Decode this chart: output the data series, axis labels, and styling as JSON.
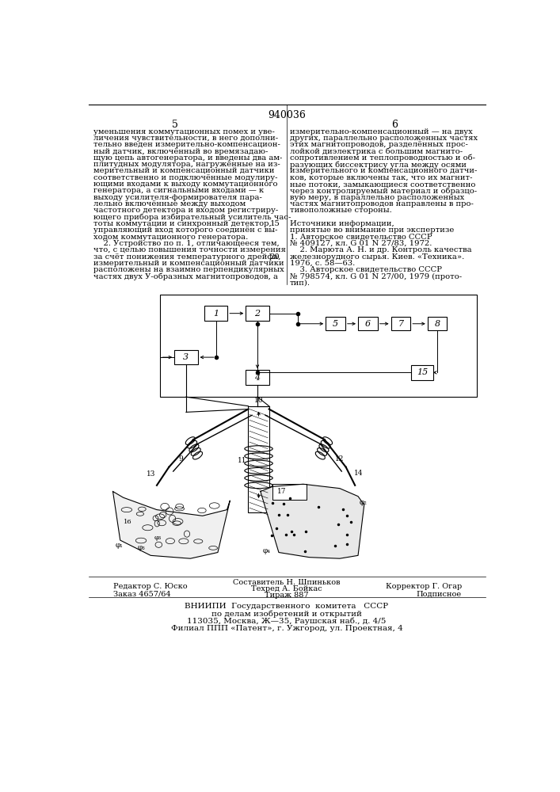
{
  "page_number": "940036",
  "col_left_number": "5",
  "col_right_number": "6",
  "col_left_text": [
    "уменьшения коммутационных помех и уве-",
    "личения чувствительности, в него дополни-",
    "тельно введен измерительно-компенсацион-",
    "ный датчик, включённый во времязадаю-",
    "щую цепь автогенератора, и введены два ам-",
    "плитудных модулятора, нагружённые на из-",
    "мерительный и компенсационный датчики",
    "соответственно и подключённые модулиру-",
    "ющими входами к выходу коммутационного",
    "генератора, а сигнальными входами — к",
    "выходу усилителя-формирователя пара-",
    "лельно включённые между выходом",
    "частотного детектора и входом регистриру-",
    "ющего прибора избирательный усилитель час-",
    "тоты коммутации и синхронный детектор,",
    "управляющий вход которого соединён с вы-",
    "ходом коммутационного генератора.",
    "    2. Устройство по п. 1, отличающееся тем,",
    "что, с целью повышения точности измерения",
    "за счёт понижения температурного дрейфа,",
    "измерительный и компенсационный датчики",
    "расположены на взаимно перпендикулярных",
    "частях двух У-образных магнитопроводов, а"
  ],
  "col_right_text": [
    "измерительно-компенсационный — на двух",
    "других, параллельно расположенных частях",
    "этих магнитопроводов, разделённых прос-",
    "лойкой диэлектрика с большим магнито-",
    "сопротивлением и теплопроводностью и об-",
    "разующих биссектрису угла между осями",
    "измерительного и компенсационного датчи-",
    "ков, которые включены так, что их магнит-",
    "ные потоки, замыкающиеся соответственно",
    "через контролируемый материал и образцо-",
    "вую меру, в параллельно расположенных",
    "частях магнитопроводов направлены в про-",
    "тивоположные стороны.",
    "",
    "Источники информации,",
    "принятые во внимание при экспертизе",
    "1. Авторское свидетельство СССР",
    "№ 409127, кл. G 01 N 27/83, 1972.",
    "    2. Марюта А. Н. и др. Контроль качества",
    "железнорудного сырья. Киев. «Техника».",
    "1976, с. 58—63.",
    "    3. Авторское свидетельство СССР",
    "№ 798574, кл. G 01 N 27/00, 1979 (прото-",
    "тип)."
  ],
  "bg_color": "#ffffff"
}
